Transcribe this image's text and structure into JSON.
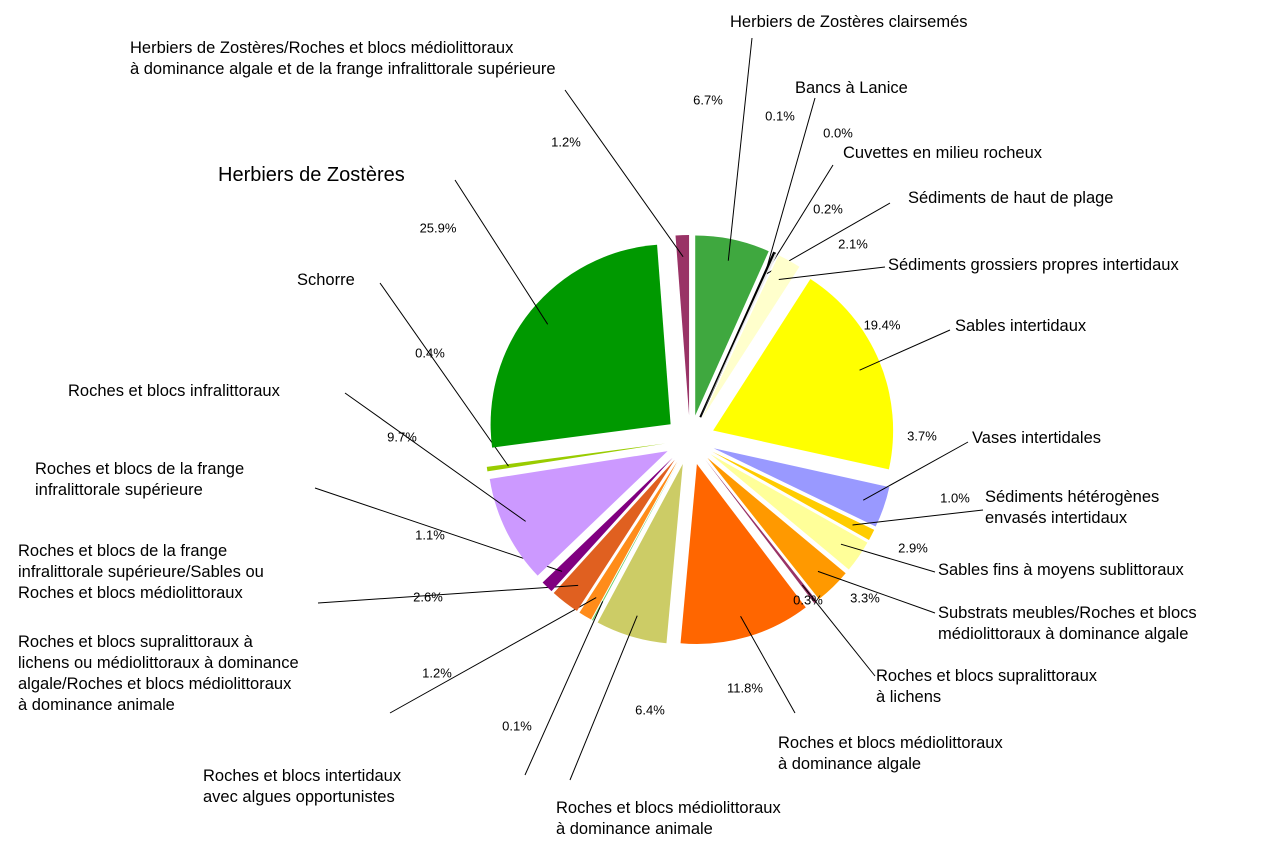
{
  "chart_data": {
    "type": "pie",
    "categories": [
      "Herbiers de Zostères clairsemés",
      "Bancs à Lanice",
      "Cuvettes en milieu rocheux",
      "Sédiments de haut de plage",
      "Sédiments grossiers propres intertidaux",
      "Sables intertidaux",
      "Vases intertidales",
      "Sédiments hétérogènes\nenvasés intertidaux",
      "Sables fins à moyens sublittoraux",
      "Substrats meubles/Roches et blocs\nmédiolittoraux à dominance algale",
      "Roches et blocs supralittoraux\nà lichens",
      "Roches et blocs médiolittoraux\nà dominance algale",
      "Roches et blocs médiolittoraux\nà dominance animale",
      "Roches et blocs intertidaux\navec algues opportunistes",
      "Roches et blocs supralittoraux à\nlichens ou médiolittoraux à dominance\nalgale/Roches et blocs médiolittoraux\nà dominance animale",
      "Roches et blocs de la frange\ninfralittorale supérieure/Sables ou\nRoches et blocs médiolittoraux",
      "Roches et blocs de la frange\ninfralittorale supérieure",
      "Roches et blocs infralittoraux",
      "Schorre",
      "Herbiers de Zostères",
      "Herbiers de Zostères/Roches et blocs médiolittoraux\nà dominance algale et de la frange infralittorale supérieure"
    ],
    "values": [
      6.7,
      0.1,
      0.0,
      0.2,
      2.1,
      19.4,
      3.7,
      1.0,
      2.9,
      3.3,
      0.3,
      11.8,
      6.4,
      0.1,
      1.2,
      2.6,
      1.1,
      9.7,
      0.4,
      25.9,
      1.2
    ],
    "value_labels": [
      "6.7%",
      "0.1%",
      "0.0%",
      "0.2%",
      "2.1%",
      "19.4%",
      "3.7%",
      "1.0%",
      "2.9%",
      "3.3%",
      "0.3%",
      "11.8%",
      "6.4%",
      "0.1%",
      "1.2%",
      "2.6%",
      "1.1%",
      "9.7%",
      "0.4%",
      "25.9%",
      "1.2%"
    ],
    "colors": [
      "#3fa83f",
      "#000000",
      "#ffffff",
      "#e8e8e8",
      "#ffffcc",
      "#ffff00",
      "#9999ff",
      "#ffcc00",
      "#ffff99",
      "#ff9900",
      "#993366",
      "#ff6600",
      "#cccc66",
      "#66cc66",
      "#ff8c1a",
      "#e06020",
      "#800080",
      "#cc99ff",
      "#99cc00",
      "#009900",
      "#993366"
    ]
  }
}
